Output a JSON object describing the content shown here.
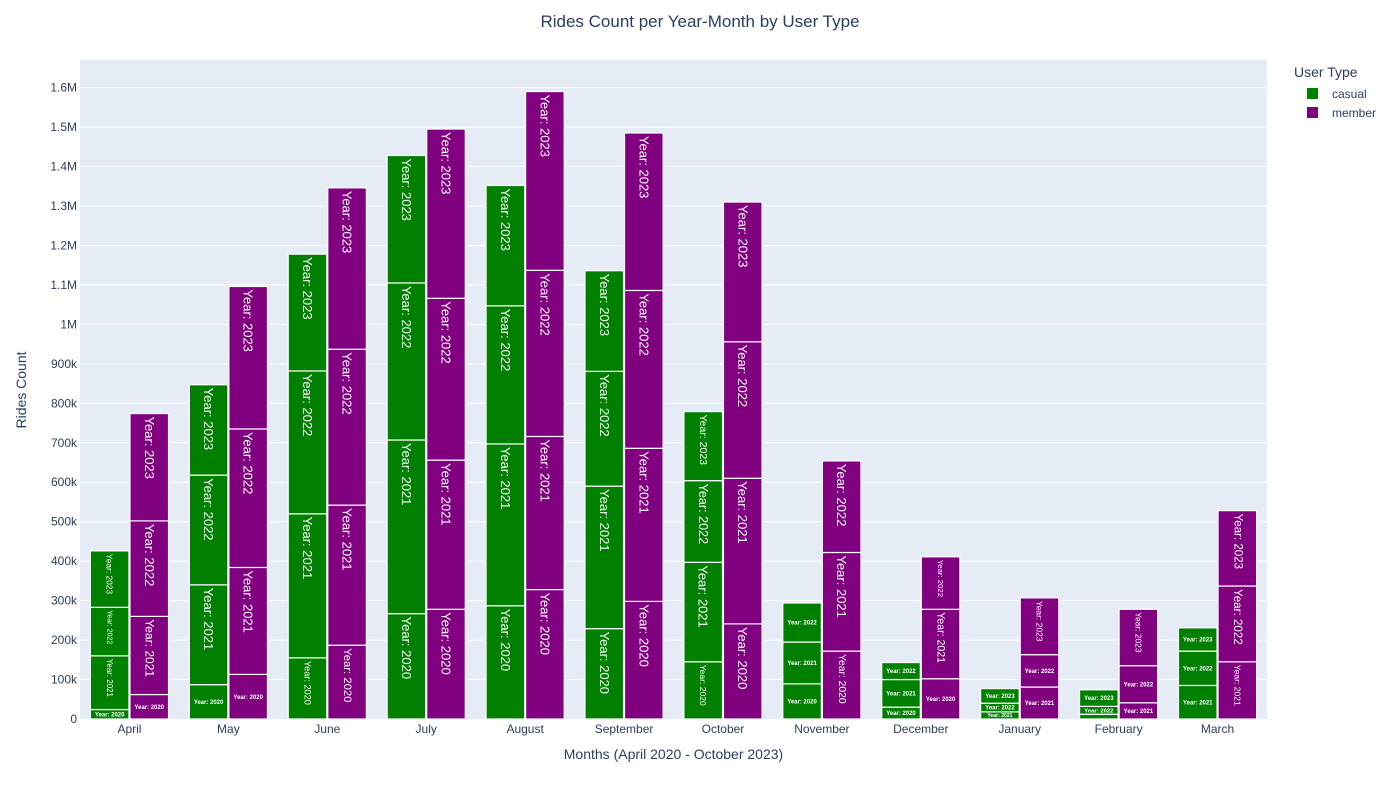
{
  "chart_data": {
    "type": "bar",
    "barmode": "stacked groups",
    "title": "Rides Count per Year-Month by User Type",
    "xlabel": "Months (April 2020 - October 2023)",
    "ylabel": "Rides Count",
    "ylim": [
      0,
      1670000
    ],
    "yticks": [
      {
        "value": 0,
        "label": "0"
      },
      {
        "value": 100000,
        "label": "100k"
      },
      {
        "value": 200000,
        "label": "200k"
      },
      {
        "value": 300000,
        "label": "300k"
      },
      {
        "value": 400000,
        "label": "400k"
      },
      {
        "value": 500000,
        "label": "500k"
      },
      {
        "value": 600000,
        "label": "600k"
      },
      {
        "value": 700000,
        "label": "700k"
      },
      {
        "value": 800000,
        "label": "800k"
      },
      {
        "value": 900000,
        "label": "900k"
      },
      {
        "value": 1000000,
        "label": "1M"
      },
      {
        "value": 1100000,
        "label": "1.1M"
      },
      {
        "value": 1200000,
        "label": "1.2M"
      },
      {
        "value": 1300000,
        "label": "1.3M"
      },
      {
        "value": 1400000,
        "label": "1.4M"
      },
      {
        "value": 1500000,
        "label": "1.5M"
      },
      {
        "value": 1600000,
        "label": "1.6M"
      }
    ],
    "grid": true,
    "legend_position": "top-right",
    "legend_title": "User Type",
    "categories": [
      "April",
      "May",
      "June",
      "July",
      "August",
      "September",
      "October",
      "November",
      "December",
      "January",
      "February",
      "March"
    ],
    "series": [
      {
        "name": "casual",
        "color": "#008000",
        "segments": [
          {
            "label": "Year: 2020",
            "values": [
              24000,
              87000,
              155000,
              267000,
              287000,
              229000,
              145000,
              89000,
              30000,
              null,
              null,
              null
            ]
          },
          {
            "label": "Year: 2021",
            "values": [
              136000,
              253000,
              365000,
              440000,
              410000,
              361000,
              252000,
              106000,
              70000,
              18000,
              12000,
              85000
            ]
          },
          {
            "label": "Year: 2022",
            "values": [
              123000,
              278000,
              362000,
              398000,
              350000,
              291000,
              207000,
              99000,
              43000,
              22000,
              20000,
              87000
            ]
          },
          {
            "label": "Year: 2023",
            "values": [
              143000,
              229000,
              296000,
              323000,
              305000,
              255000,
              175000,
              null,
              null,
              37000,
              42000,
              59000
            ]
          }
        ]
      },
      {
        "name": "member",
        "color": "#800080",
        "segments": [
          {
            "label": "Year: 2020",
            "values": [
              62000,
              113000,
              187000,
              278000,
              328000,
              298000,
              241000,
              172000,
              102000,
              null,
              null,
              null
            ]
          },
          {
            "label": "Year: 2021",
            "values": [
              198000,
              271000,
              355000,
              378000,
              388000,
              388000,
              369000,
              250000,
              176000,
              81000,
              41000,
              145000
            ]
          },
          {
            "label": "Year: 2022",
            "values": [
              242000,
              351000,
              395000,
              410000,
              421000,
              400000,
              346000,
              232000,
              133000,
              82000,
              94000,
              192000
            ]
          },
          {
            "label": "Year: 2023",
            "values": [
              272000,
              361000,
              409000,
              429000,
              453000,
              399000,
              354000,
              null,
              null,
              144000,
              143000,
              191000
            ]
          }
        ]
      }
    ]
  }
}
